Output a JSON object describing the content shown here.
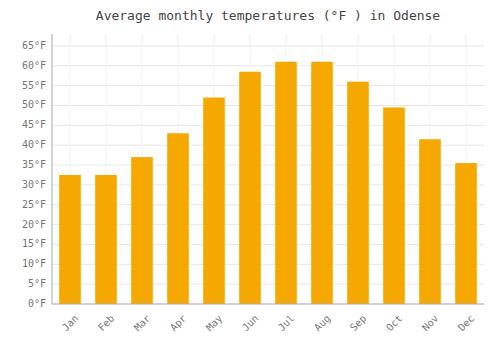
{
  "chart_data": {
    "type": "bar",
    "title": "Average monthly temperatures (°F ) in Odense",
    "categories": [
      "Jan",
      "Feb",
      "Mar",
      "Apr",
      "May",
      "Jun",
      "Jul",
      "Aug",
      "Sep",
      "Oct",
      "Nov",
      "Dec"
    ],
    "values": [
      32.5,
      32.5,
      37,
      43,
      52,
      58.5,
      61,
      61,
      56,
      49.5,
      41.5,
      35.5
    ],
    "color": "#F5A800",
    "ylim": [
      0,
      68
    ],
    "yticks": [
      {
        "value": 0,
        "label": "0°F"
      },
      {
        "value": 5,
        "label": "5°F"
      },
      {
        "value": 10,
        "label": "10°F"
      },
      {
        "value": 15,
        "label": "15°F"
      },
      {
        "value": 20,
        "label": "20°F"
      },
      {
        "value": 25,
        "label": "25°F"
      },
      {
        "value": 30,
        "label": "30°F"
      },
      {
        "value": 35,
        "label": "35°F"
      },
      {
        "value": 40,
        "label": "40°F"
      },
      {
        "value": 45,
        "label": "45°F"
      },
      {
        "value": 50,
        "label": "50°F"
      },
      {
        "value": 55,
        "label": "55°F"
      },
      {
        "value": 60,
        "label": "60°F"
      },
      {
        "value": 65,
        "label": "65°F"
      }
    ],
    "grid": true
  }
}
